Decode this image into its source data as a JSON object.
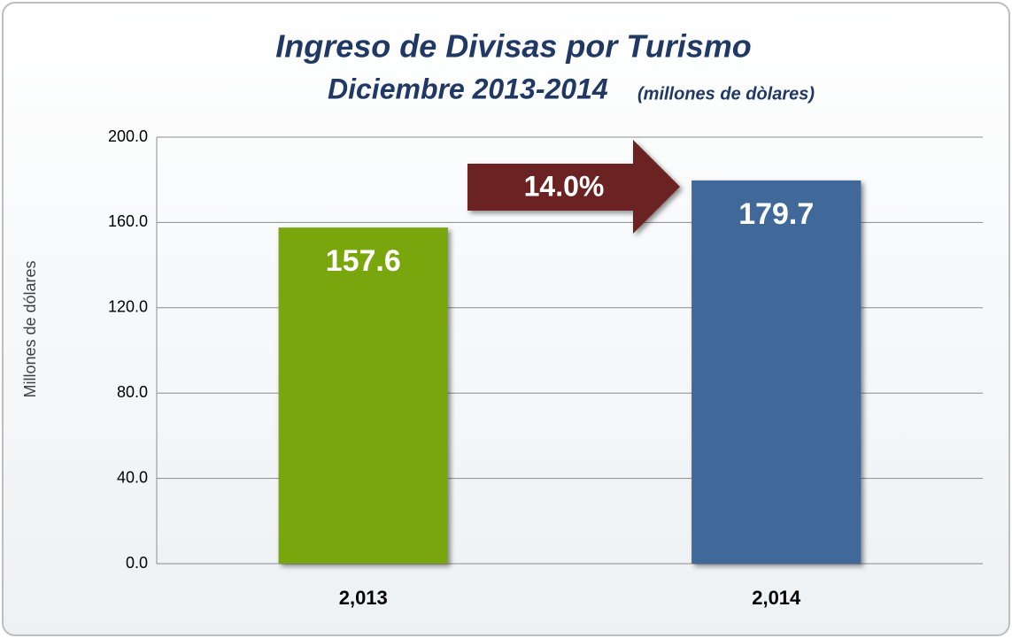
{
  "chart_data": {
    "type": "bar",
    "title": "Ingreso de Divisas por Turismo",
    "subtitle": "Diciembre 2013-2014",
    "subtitle_note": "(millones de dòlares)",
    "y_label": "Millones de dólares",
    "categories": [
      "2,013",
      "2,014"
    ],
    "values": [
      157.6,
      179.7
    ],
    "colors": [
      "#7aa60a",
      "#3f6899"
    ],
    "annotation": "14.0%",
    "ylim": [
      0,
      200
    ],
    "yticks": [
      {
        "value": 0,
        "label": "0.0"
      },
      {
        "value": 40,
        "label": "40.0"
      },
      {
        "value": 80,
        "label": "80.0"
      },
      {
        "value": 120,
        "label": "120.0"
      },
      {
        "value": 160,
        "label": "160.0"
      },
      {
        "value": 200,
        "label": "200.0"
      }
    ],
    "grid": true
  }
}
